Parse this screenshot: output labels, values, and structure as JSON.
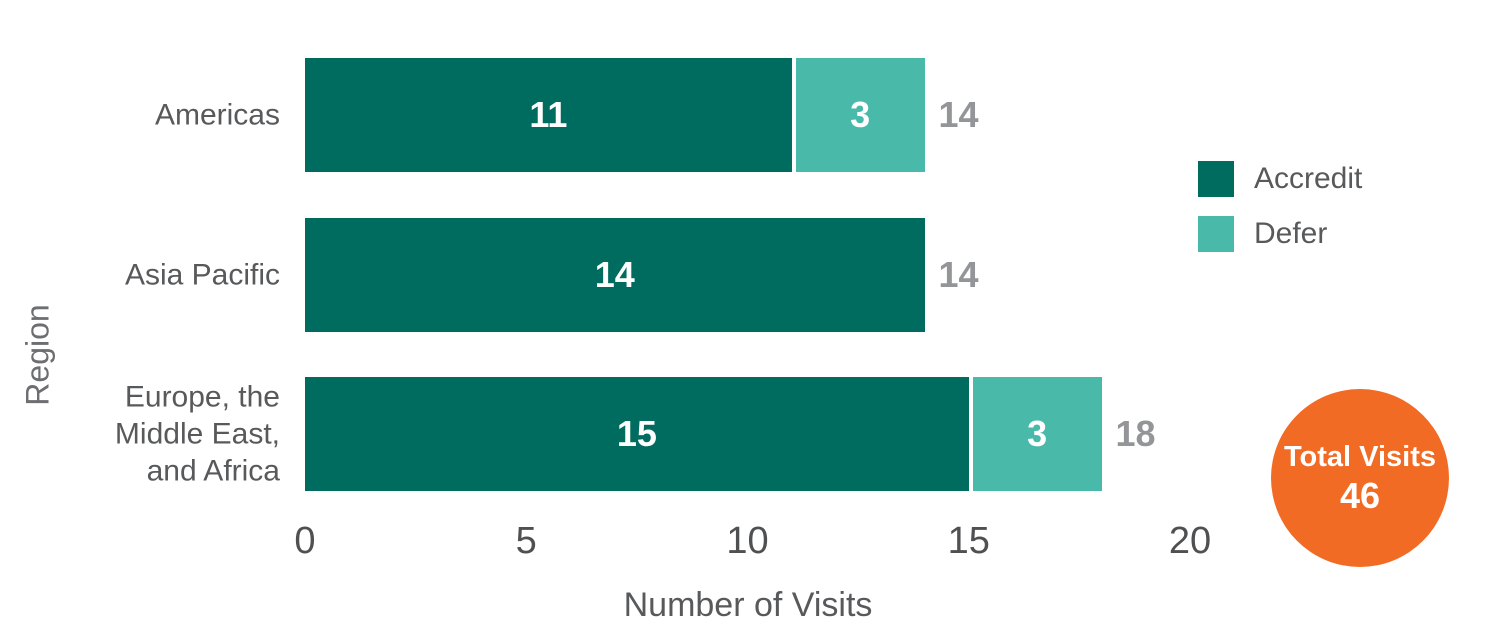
{
  "chart_data": {
    "type": "bar",
    "orientation": "horizontal",
    "stacked": true,
    "xlabel": "Number of Visits",
    "ylabel": "Region",
    "xlim": [
      0,
      20
    ],
    "x_ticks": [
      0,
      5,
      10,
      15,
      20
    ],
    "grid": false,
    "legend_position": "right",
    "categories": [
      "Americas",
      "Asia Pacific",
      "Europe, the\nMiddle East,\nand Africa"
    ],
    "series": [
      {
        "name": "Accredit",
        "color": "#006C60",
        "values": [
          11,
          14,
          15
        ]
      },
      {
        "name": "Defer",
        "color": "#49B9AA",
        "values": [
          3,
          0,
          3
        ]
      }
    ],
    "totals": [
      14,
      14,
      18
    ]
  },
  "badge": {
    "label": "Total Visits",
    "value": "46",
    "color": "#F26B24"
  },
  "colors": {
    "accredit": "#006C60",
    "defer": "#49B9AA",
    "badge_orange": "#F26B24",
    "label_gray": "#58595B",
    "total_gray": "#939598",
    "tick_gray": "#4F5052"
  }
}
